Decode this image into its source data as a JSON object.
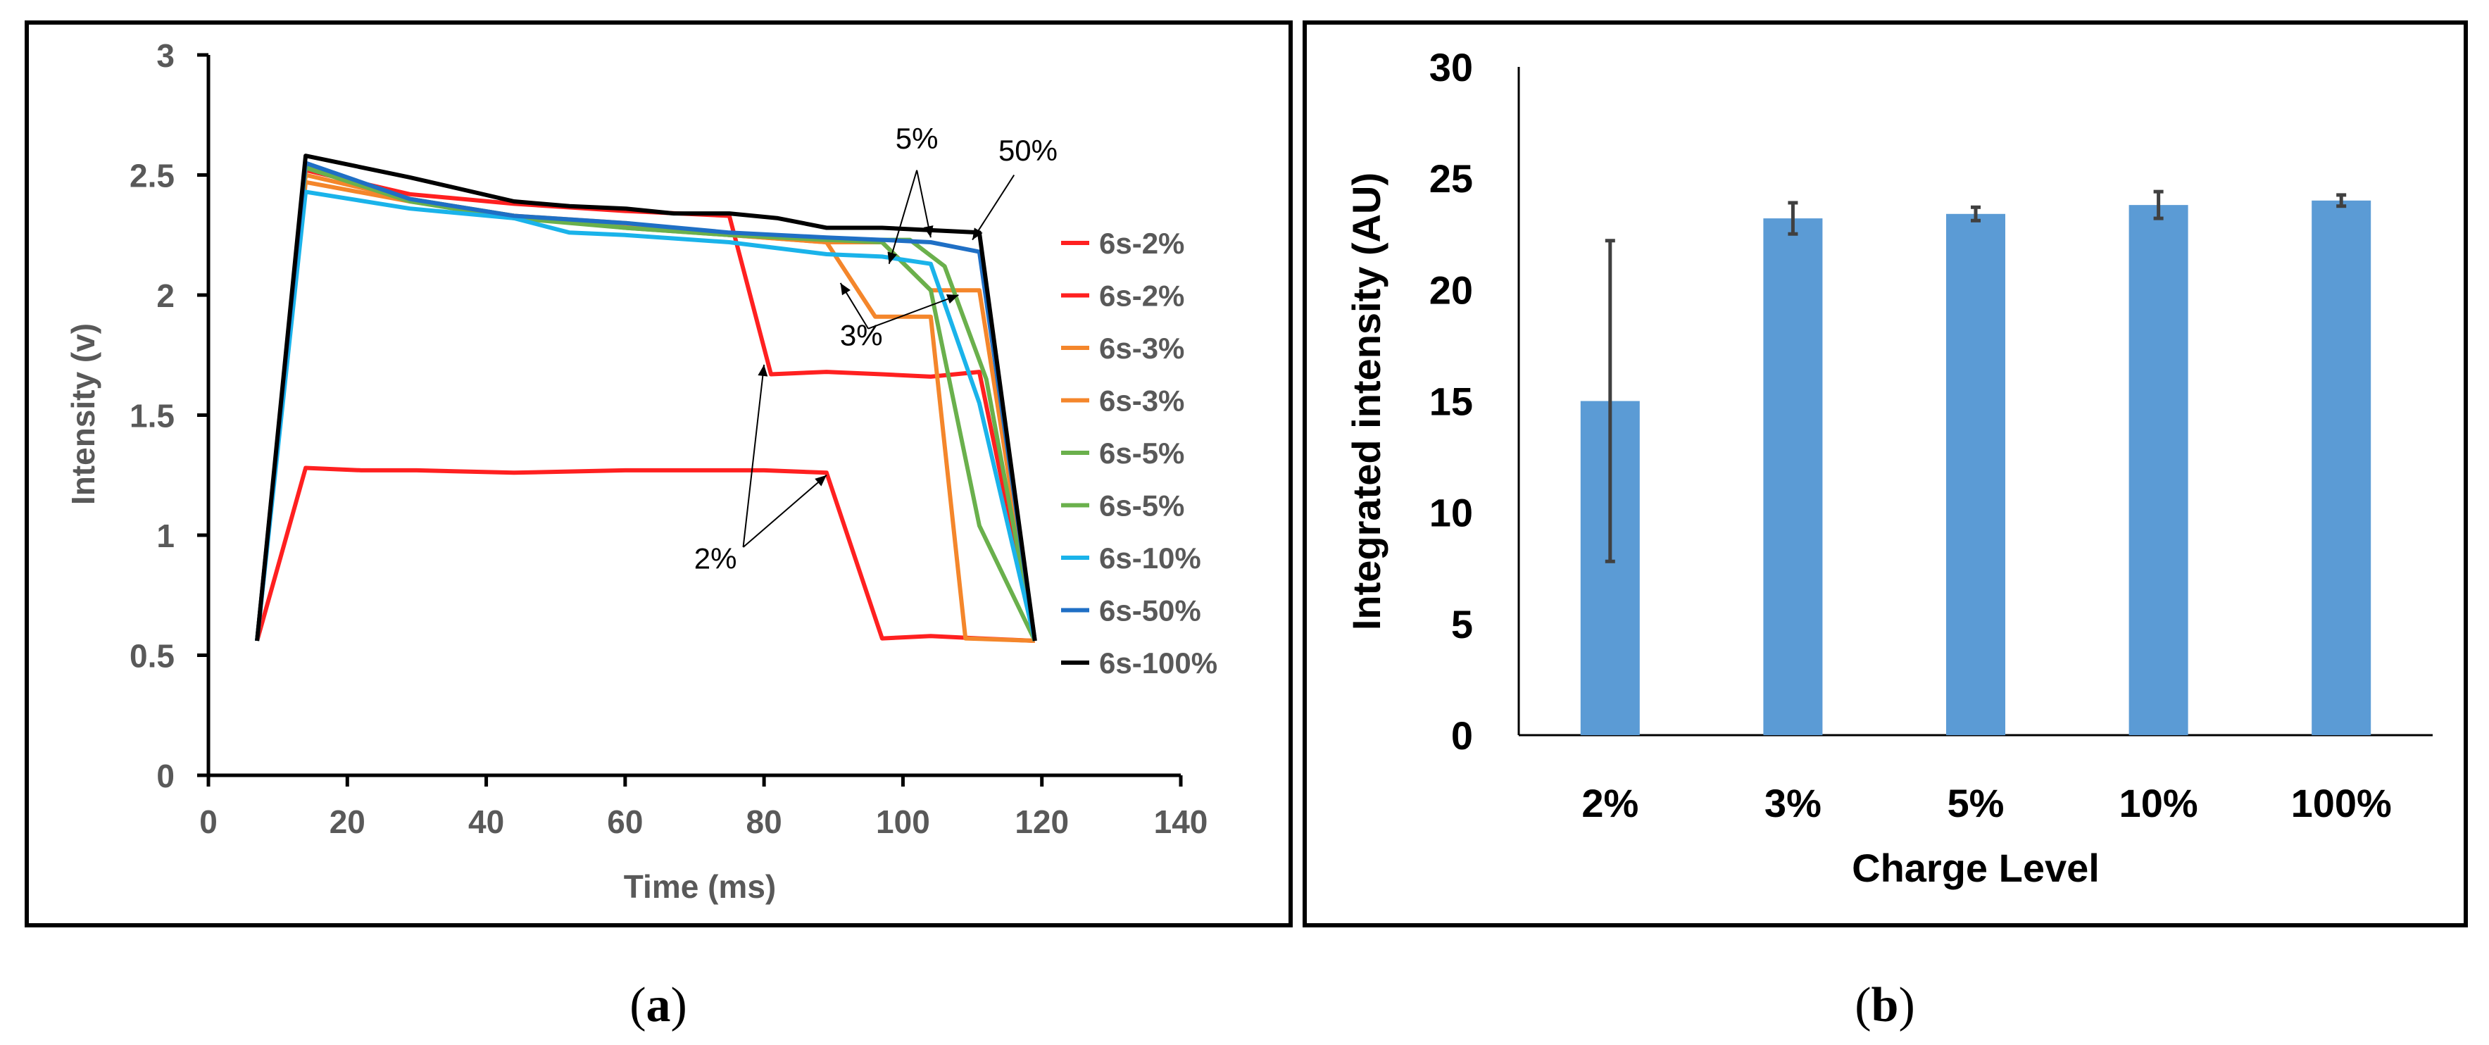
{
  "chart_data": [
    {
      "type": "line",
      "panel_label": "a",
      "title": "",
      "xlabel": "Time (ms)",
      "ylabel": "Intensity (v)",
      "xlim": [
        0,
        140
      ],
      "ylim": [
        0,
        3
      ],
      "xticks": [
        "0",
        "20",
        "40",
        "60",
        "80",
        "100",
        "120",
        "140"
      ],
      "yticks": [
        "0",
        "0.5",
        "1",
        "1.5",
        "2",
        "2.5",
        "3"
      ],
      "grid": false,
      "legend_position": "right",
      "series": [
        {
          "name": "6s-2%",
          "color": "#ff2020",
          "points": [
            [
              7,
              0.56
            ],
            [
              14,
              1.28
            ],
            [
              22,
              1.27
            ],
            [
              30,
              1.27
            ],
            [
              44,
              1.26
            ],
            [
              60,
              1.27
            ],
            [
              80,
              1.27
            ],
            [
              89,
              1.26
            ],
            [
              97,
              0.57
            ],
            [
              104,
              0.58
            ],
            [
              111,
              0.57
            ],
            [
              119,
              0.56
            ]
          ]
        },
        {
          "name": "6s-2%",
          "color": "#ff2020",
          "points": [
            [
              7,
              0.56
            ],
            [
              14,
              2.52
            ],
            [
              29,
              2.42
            ],
            [
              44,
              2.38
            ],
            [
              60,
              2.35
            ],
            [
              75,
              2.33
            ],
            [
              81,
              1.67
            ],
            [
              89,
              1.68
            ],
            [
              97,
              1.67
            ],
            [
              104,
              1.66
            ],
            [
              111,
              1.68
            ],
            [
              119,
              0.56
            ]
          ]
        },
        {
          "name": "6s-3%",
          "color": "#f4862b",
          "points": [
            [
              7,
              0.56
            ],
            [
              14,
              2.5
            ],
            [
              29,
              2.4
            ],
            [
              44,
              2.33
            ],
            [
              60,
              2.3
            ],
            [
              75,
              2.25
            ],
            [
              89,
              2.22
            ],
            [
              96,
              1.91
            ],
            [
              104,
              1.91
            ],
            [
              109,
              0.57
            ],
            [
              119,
              0.56
            ]
          ]
        },
        {
          "name": "6s-3%",
          "color": "#f4862b",
          "points": [
            [
              7,
              0.56
            ],
            [
              14,
              2.47
            ],
            [
              29,
              2.39
            ],
            [
              44,
              2.33
            ],
            [
              60,
              2.29
            ],
            [
              75,
              2.25
            ],
            [
              89,
              2.22
            ],
            [
              97,
              2.22
            ],
            [
              104,
              2.02
            ],
            [
              111,
              2.02
            ],
            [
              119,
              0.56
            ]
          ]
        },
        {
          "name": "6s-5%",
          "color": "#6ab04c",
          "points": [
            [
              7,
              0.56
            ],
            [
              14,
              2.53
            ],
            [
              29,
              2.39
            ],
            [
              44,
              2.32
            ],
            [
              60,
              2.28
            ],
            [
              75,
              2.25
            ],
            [
              89,
              2.23
            ],
            [
              97,
              2.22
            ],
            [
              104,
              2.02
            ],
            [
              111,
              1.04
            ],
            [
              119,
              0.56
            ]
          ]
        },
        {
          "name": "6s-5%",
          "color": "#6ab04c",
          "points": [
            [
              7,
              0.56
            ],
            [
              14,
              2.54
            ],
            [
              29,
              2.4
            ],
            [
              44,
              2.33
            ],
            [
              60,
              2.28
            ],
            [
              75,
              2.25
            ],
            [
              89,
              2.23
            ],
            [
              101,
              2.23
            ],
            [
              106,
              2.12
            ],
            [
              112,
              1.65
            ],
            [
              119,
              0.56
            ]
          ]
        },
        {
          "name": "6s-10%",
          "color": "#1ab3ea",
          "points": [
            [
              7,
              0.56
            ],
            [
              14,
              2.43
            ],
            [
              29,
              2.36
            ],
            [
              44,
              2.32
            ],
            [
              52,
              2.26
            ],
            [
              60,
              2.25
            ],
            [
              75,
              2.22
            ],
            [
              89,
              2.17
            ],
            [
              97,
              2.16
            ],
            [
              104,
              2.13
            ],
            [
              111,
              1.55
            ],
            [
              119,
              0.56
            ]
          ]
        },
        {
          "name": "6s-50%",
          "color": "#1f6fc5",
          "points": [
            [
              7,
              0.56
            ],
            [
              14,
              2.55
            ],
            [
              29,
              2.4
            ],
            [
              44,
              2.33
            ],
            [
              60,
              2.3
            ],
            [
              75,
              2.26
            ],
            [
              89,
              2.24
            ],
            [
              97,
              2.23
            ],
            [
              104,
              2.22
            ],
            [
              111,
              2.18
            ],
            [
              119,
              0.56
            ]
          ]
        },
        {
          "name": "6s-100%",
          "color": "#000000",
          "points": [
            [
              7,
              0.56
            ],
            [
              14,
              2.58
            ],
            [
              29,
              2.49
            ],
            [
              44,
              2.39
            ],
            [
              52,
              2.37
            ],
            [
              60,
              2.36
            ],
            [
              67,
              2.34
            ],
            [
              75,
              2.34
            ],
            [
              82,
              2.32
            ],
            [
              89,
              2.28
            ],
            [
              97,
              2.28
            ],
            [
              104,
              2.27
            ],
            [
              111,
              2.26
            ],
            [
              119,
              0.56
            ]
          ]
        }
      ],
      "annotations": {
        "a5": {
          "text": "5%",
          "x": 102,
          "y": 2.61
        },
        "a50": {
          "text": "50%",
          "x": 118,
          "y": 2.56
        },
        "a3": {
          "text": "3%",
          "x": 94,
          "y": 1.79
        },
        "a2": {
          "text": "2%",
          "x": 73,
          "y": 0.86
        }
      },
      "annotation_arrows": [
        {
          "from": [
            102,
            2.52
          ],
          "to": [
            98,
            2.13
          ]
        },
        {
          "from": [
            102,
            2.52
          ],
          "to": [
            104,
            2.24
          ]
        },
        {
          "from": [
            116,
            2.5
          ],
          "to": [
            110,
            2.23
          ]
        },
        {
          "from": [
            95,
            1.86
          ],
          "to": [
            91,
            2.05
          ]
        },
        {
          "from": [
            95,
            1.86
          ],
          "to": [
            108,
            2.0
          ]
        },
        {
          "from": [
            77,
            0.95
          ],
          "to": [
            80,
            1.71
          ]
        },
        {
          "from": [
            77,
            0.95
          ],
          "to": [
            89,
            1.25
          ]
        }
      ]
    },
    {
      "type": "bar",
      "panel_label": "b",
      "title": "",
      "xlabel": "Charge Level",
      "ylabel": "Integrated intensity (AU)",
      "categories": [
        "2%",
        "3%",
        "5%",
        "10%",
        "100%"
      ],
      "values": [
        15,
        23.2,
        23.4,
        23.8,
        24
      ],
      "error_bars": [
        7.2,
        0.7,
        0.3,
        0.6,
        0.25
      ],
      "ylim": [
        0,
        30
      ],
      "yticks": [
        "0",
        "5",
        "10",
        "15",
        "20",
        "25",
        "30"
      ],
      "bar_color": "#5b9bd5",
      "grid": false
    }
  ],
  "captions": {
    "a": {
      "open": "(",
      "letter": "a",
      "close": ")"
    },
    "b": {
      "open": "(",
      "letter": "b",
      "close": ")"
    }
  }
}
